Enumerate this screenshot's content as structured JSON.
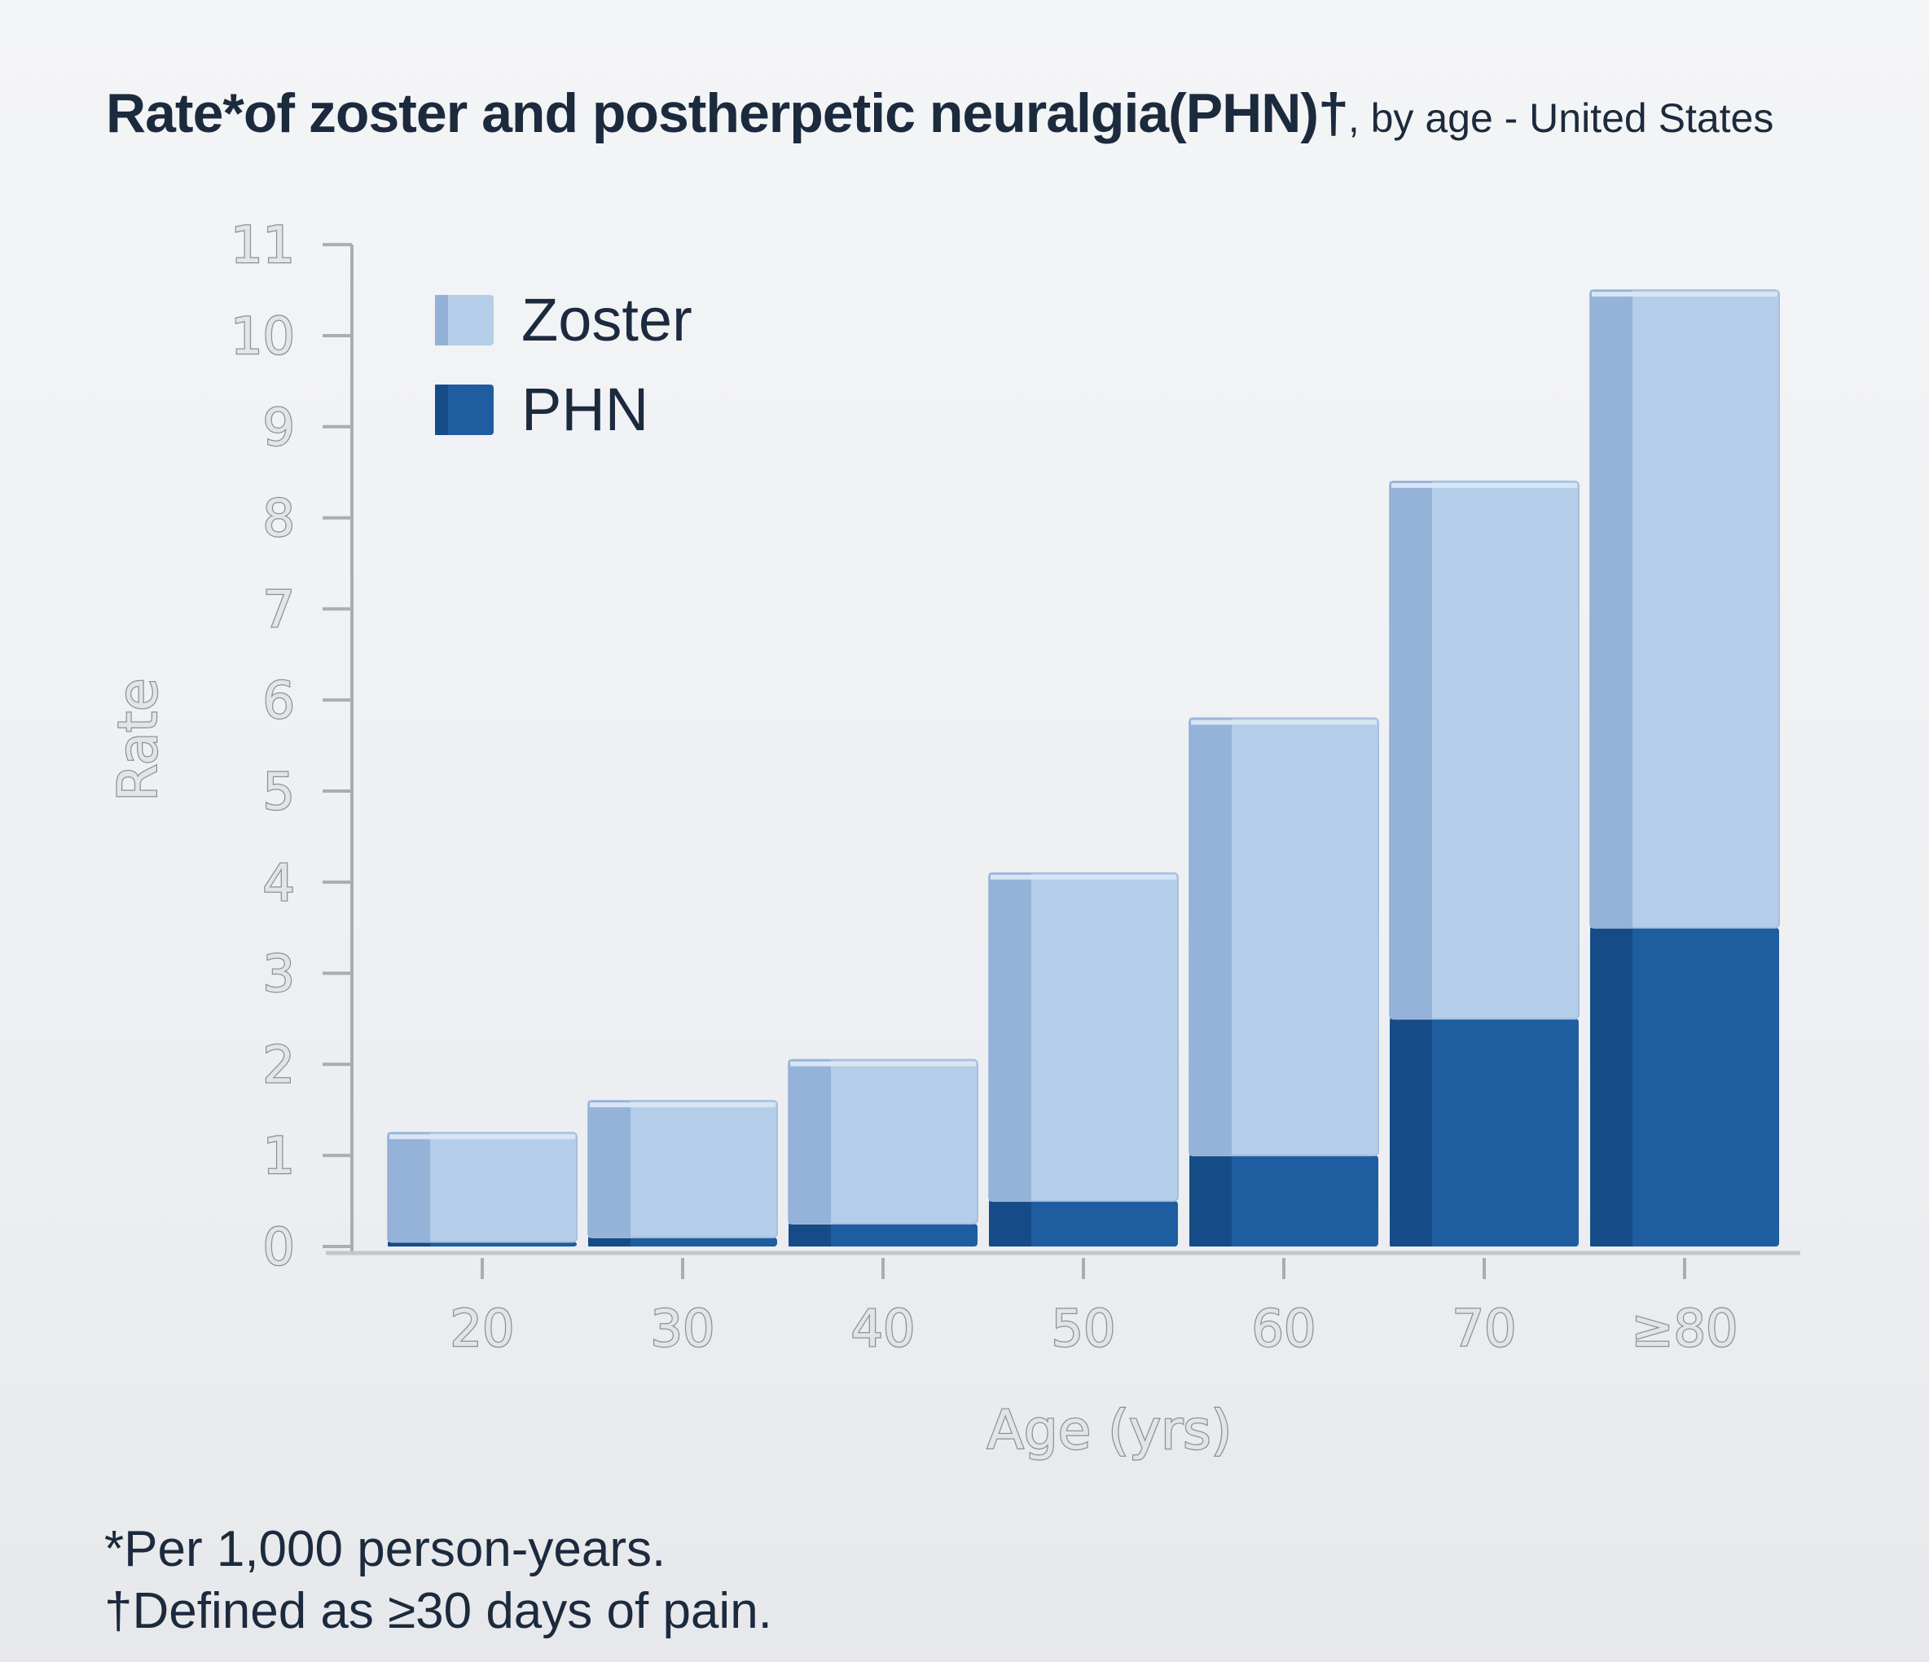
{
  "chart_data": {
    "type": "bar",
    "stacked": true,
    "title": "Rate*of zoster and postherpetic neuralgia(PHN)†",
    "subtitle": ", by age - United States",
    "xlabel": "Age (yrs)",
    "ylabel": "Rate",
    "ylim": [
      0,
      11
    ],
    "yticks": [
      0,
      1,
      2,
      3,
      4,
      5,
      6,
      7,
      8,
      9,
      10,
      11
    ],
    "categories": [
      "20",
      "30",
      "40",
      "50",
      "60",
      "70",
      "≥80"
    ],
    "series": [
      {
        "name": "PHN",
        "values": [
          0.05,
          0.1,
          0.25,
          0.5,
          1.0,
          2.5,
          3.5
        ]
      },
      {
        "name": "Zoster",
        "values": [
          1.2,
          1.5,
          1.8,
          3.6,
          4.8,
          5.9,
          7.0
        ]
      }
    ],
    "legend_position": "top-left",
    "grid": false
  },
  "colors": {
    "zoster": "#b4cde8",
    "zoster_side": "#8faed5",
    "phn": "#1d5da0",
    "phn_side": "#154a85"
  },
  "footnotes": [
    "*Per 1,000 person-years.",
    "†Defined as ≥30 days of pain."
  ]
}
